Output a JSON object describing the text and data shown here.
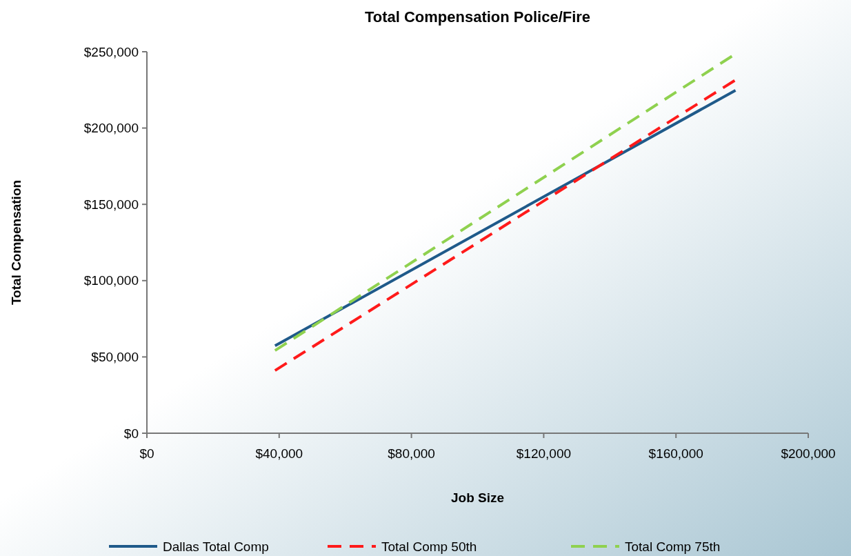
{
  "chart_data": {
    "type": "line",
    "title": "Total Compensation Police/Fire",
    "xlabel": "Job Size",
    "ylabel": "Total Compensation",
    "xlim": [
      0,
      200000
    ],
    "xticks": [
      {
        "value": 0,
        "label": "$0"
      },
      {
        "value": 40000,
        "label": "$40,000"
      },
      {
        "value": 80000,
        "label": "$80,000"
      },
      {
        "value": 120000,
        "label": "$120,000"
      },
      {
        "value": 160000,
        "label": "$160,000"
      },
      {
        "value": 200000,
        "label": "$200,000"
      }
    ],
    "ylim": [
      0,
      250000
    ],
    "yticks": [
      {
        "value": 0,
        "label": "$0"
      },
      {
        "value": 50000,
        "label": "$50,000"
      },
      {
        "value": 100000,
        "label": "$100,000"
      },
      {
        "value": 150000,
        "label": "$150,000"
      },
      {
        "value": 200000,
        "label": "$200,000"
      },
      {
        "value": 250000,
        "label": "$250,000"
      }
    ],
    "x": [
      38750,
      178000
    ],
    "series": [
      {
        "name": "Dallas Total Comp",
        "color": "#1f5a8a",
        "values": [
          57300,
          224700
        ],
        "line_style": "solid"
      },
      {
        "name": "Total Comp 50th",
        "color": "#ff1a1a",
        "values": [
          41100,
          231500
        ],
        "line_style": "dashed"
      },
      {
        "name": "Total Comp 75th",
        "color": "#8fd14f",
        "values": [
          54200,
          248600
        ],
        "line_style": "dashed"
      }
    ],
    "grid": false,
    "legend": "bottom",
    "marker": "none"
  }
}
